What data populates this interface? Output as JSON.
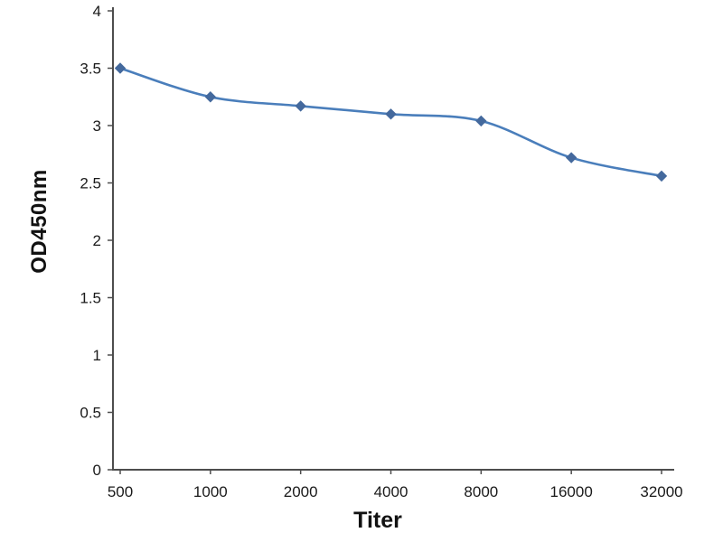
{
  "chart_data": {
    "type": "line",
    "title": "",
    "xlabel": "Titer",
    "ylabel": "OD450nm",
    "categories": [
      "500",
      "1000",
      "2000",
      "4000",
      "8000",
      "16000",
      "32000"
    ],
    "series": [
      {
        "name": "OD450nm",
        "values": [
          3.5,
          3.25,
          3.17,
          3.1,
          3.04,
          2.72,
          2.56
        ]
      }
    ],
    "ylim": [
      0,
      4
    ],
    "yticks": [
      0,
      0.5,
      1,
      1.5,
      2,
      2.5,
      3,
      3.5,
      4
    ],
    "line_color": "#4a7ebb",
    "marker_color": "#44699d",
    "axis_color": "#4d4d4d",
    "tick_label_color": "#1a1a1a",
    "marker": "diamond",
    "grid": false,
    "legend_position": "none"
  }
}
